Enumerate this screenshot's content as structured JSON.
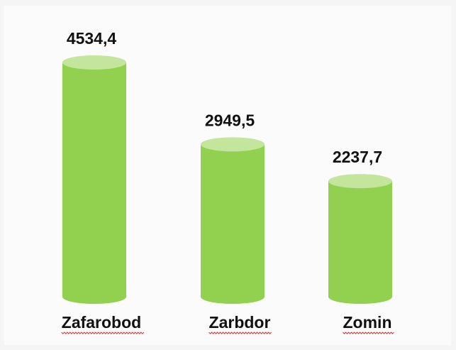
{
  "chart_data": {
    "type": "cylinder",
    "categories": [
      "Zafarobod",
      "Zarbdor",
      "Zomin"
    ],
    "values": [
      4534.4,
      2949.5,
      2237.7
    ],
    "value_labels": [
      "4534,4",
      "2949,5",
      "2237,7"
    ],
    "color": "#92d050"
  }
}
